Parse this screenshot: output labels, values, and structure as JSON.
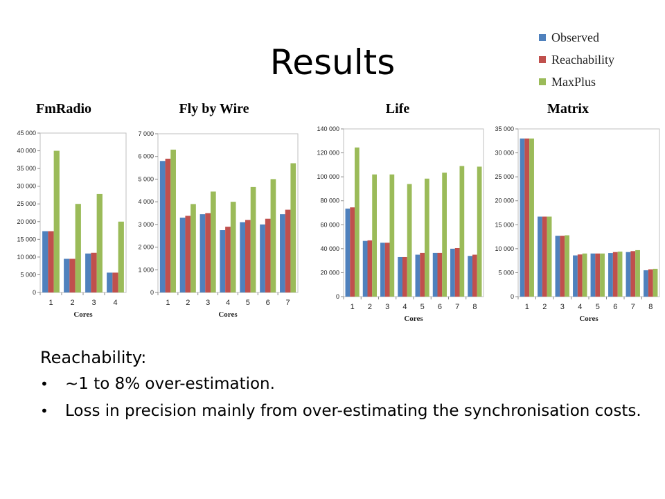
{
  "slide": {
    "title": "Results",
    "section_heading": "Reachability:",
    "bullets": [
      "~1 to 8% over-estimation.",
      "Loss in precision mainly from over-estimating the synchronisation costs."
    ]
  },
  "legend": {
    "position": "top-right",
    "items": [
      {
        "name": "Observed",
        "color": "#4F81BD"
      },
      {
        "name": "Reachability",
        "color": "#C0504D"
      },
      {
        "name": "MaxPlus",
        "color": "#9BBB59"
      }
    ]
  },
  "chart_data": [
    {
      "type": "bar",
      "title": "FmRadio",
      "xlabel": "Cores",
      "ylabel": "",
      "categories": [
        "1",
        "2",
        "3",
        "4"
      ],
      "ylim": [
        0,
        45000
      ],
      "yticks": [
        "0",
        "5 000",
        "10 000",
        "15 000",
        "20 000",
        "25 000",
        "30 000",
        "35 000",
        "40 000",
        "45 000"
      ],
      "series": [
        {
          "name": "Observed",
          "values": [
            17300,
            9500,
            11000,
            5600
          ]
        },
        {
          "name": "Reachability",
          "values": [
            17300,
            9500,
            11200,
            5600
          ]
        },
        {
          "name": "MaxPlus",
          "values": [
            40000,
            25000,
            27800,
            20000
          ]
        }
      ]
    },
    {
      "type": "bar",
      "title": "Fly by Wire",
      "xlabel": "Cores",
      "ylabel": "",
      "categories": [
        "1",
        "2",
        "3",
        "4",
        "5",
        "6",
        "7"
      ],
      "ylim": [
        0,
        7000
      ],
      "yticks": [
        "0",
        "1 000",
        "2 000",
        "3 000",
        "4 000",
        "5 000",
        "6 000",
        "7 000"
      ],
      "series": [
        {
          "name": "Observed",
          "values": [
            5800,
            3300,
            3450,
            2750,
            3100,
            3000,
            3450
          ]
        },
        {
          "name": "Reachability",
          "values": [
            5900,
            3380,
            3500,
            2900,
            3200,
            3250,
            3650
          ]
        },
        {
          "name": "MaxPlus",
          "values": [
            6300,
            3900,
            4450,
            4000,
            4650,
            5000,
            5700
          ]
        }
      ]
    },
    {
      "type": "bar",
      "title": "Life",
      "xlabel": "Cores",
      "ylabel": "",
      "categories": [
        "1",
        "2",
        "3",
        "4",
        "5",
        "6",
        "7",
        "8"
      ],
      "ylim": [
        0,
        140000
      ],
      "yticks": [
        "0",
        "20 000",
        "40 000",
        "60 000",
        "80 000",
        "100 000",
        "120 000",
        "140 000"
      ],
      "series": [
        {
          "name": "Observed",
          "values": [
            73500,
            46500,
            45000,
            33000,
            35000,
            36500,
            40000,
            34000
          ]
        },
        {
          "name": "Reachability",
          "values": [
            74500,
            47000,
            45000,
            33000,
            36500,
            36500,
            40500,
            35000
          ]
        },
        {
          "name": "MaxPlus",
          "values": [
            124500,
            102000,
            102000,
            94000,
            98500,
            103500,
            109000,
            108500
          ]
        }
      ]
    },
    {
      "type": "bar",
      "title": "Matrix",
      "xlabel": "Cores",
      "ylabel": "",
      "categories": [
        "1",
        "2",
        "3",
        "4",
        "5",
        "6",
        "7",
        "8"
      ],
      "ylim": [
        0,
        35000
      ],
      "yticks": [
        "0",
        "5 000",
        "10 000",
        "15 000",
        "20 000",
        "25 000",
        "30 000",
        "35 000"
      ],
      "series": [
        {
          "name": "Observed",
          "values": [
            33000,
            16700,
            12700,
            8600,
            9000,
            9100,
            9300,
            5500
          ]
        },
        {
          "name": "Reachability",
          "values": [
            33000,
            16700,
            12700,
            8800,
            9000,
            9300,
            9500,
            5700
          ]
        },
        {
          "name": "MaxPlus",
          "values": [
            33000,
            16700,
            12800,
            9000,
            9000,
            9400,
            9700,
            5800
          ]
        }
      ]
    }
  ]
}
